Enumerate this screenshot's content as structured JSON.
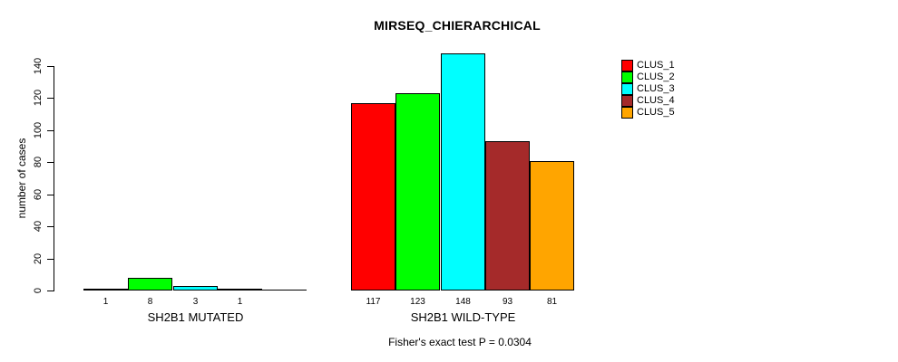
{
  "chart_data": {
    "type": "bar",
    "title": "MIRSEQ_CHIERARCHICAL",
    "ylabel": "number of cases",
    "xlabel": "",
    "footer": "Fisher's exact test P = 0.0304",
    "ylim": [
      0,
      140
    ],
    "yticks": [
      0,
      20,
      40,
      60,
      80,
      100,
      120,
      140
    ],
    "grid": false,
    "legend_position": "top-right",
    "categories": [
      "SH2B1 MUTATED",
      "SH2B1 WILD-TYPE"
    ],
    "series": [
      {
        "name": "CLUS_1",
        "color": "#FF0000",
        "values": [
          1,
          117
        ]
      },
      {
        "name": "CLUS_2",
        "color": "#00FF00",
        "values": [
          8,
          123
        ]
      },
      {
        "name": "CLUS_3",
        "color": "#00FFFF",
        "values": [
          3,
          148
        ]
      },
      {
        "name": "CLUS_4",
        "color": "#A52A2A",
        "values": [
          1,
          93
        ]
      },
      {
        "name": "CLUS_5",
        "color": "#FFA500",
        "values": [
          0,
          81
        ]
      }
    ],
    "bar_labels": [
      [
        "1",
        "8",
        "3",
        "1",
        ""
      ],
      [
        "117",
        "123",
        "148",
        "93",
        "81"
      ]
    ],
    "text_color": "#000000",
    "axis_color": "#000000"
  }
}
